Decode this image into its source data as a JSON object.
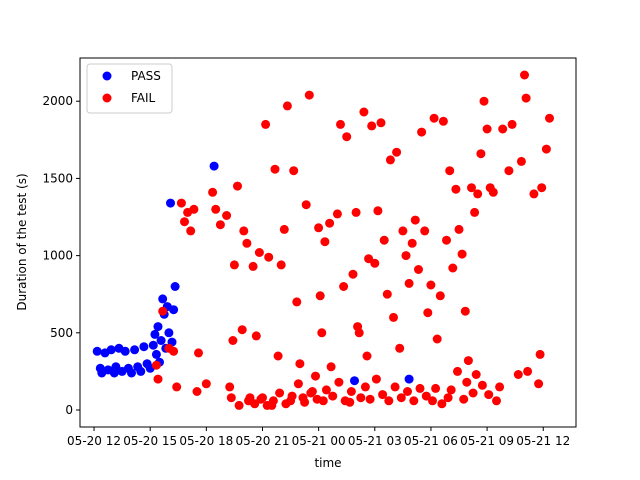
{
  "chart_data": {
    "type": "scatter",
    "title": "",
    "xlabel": "time",
    "ylabel": "Duration of the test (s)",
    "x_is_time": true,
    "xlim": [
      "2024-05-20T11:15:00",
      "2024-05-21T13:45:00"
    ],
    "ylim": [
      -110,
      2280
    ],
    "grid": false,
    "legend_position": "upper left",
    "x_ticks": [
      {
        "t": "2024-05-20T12:00:00",
        "label": "05-20 12"
      },
      {
        "t": "2024-05-20T15:00:00",
        "label": "05-20 15"
      },
      {
        "t": "2024-05-20T18:00:00",
        "label": "05-20 18"
      },
      {
        "t": "2024-05-20T21:00:00",
        "label": "05-20 21"
      },
      {
        "t": "2024-05-21T00:00:00",
        "label": "05-21 00"
      },
      {
        "t": "2024-05-21T03:00:00",
        "label": "05-21 03"
      },
      {
        "t": "2024-05-21T06:00:00",
        "label": "05-21 06"
      },
      {
        "t": "2024-05-21T09:00:00",
        "label": "05-21 09"
      },
      {
        "t": "2024-05-21T12:00:00",
        "label": "05-21 12"
      }
    ],
    "y_ticks": [
      0,
      500,
      1000,
      1500,
      2000
    ],
    "series": [
      {
        "name": "PASS",
        "color": "#0000ff",
        "points": [
          [
            "2024-05-20T12:10:00",
            380
          ],
          [
            "2024-05-20T12:20:00",
            270
          ],
          [
            "2024-05-20T12:25:00",
            240
          ],
          [
            "2024-05-20T12:35:00",
            370
          ],
          [
            "2024-05-20T12:45:00",
            260
          ],
          [
            "2024-05-20T12:55:00",
            390
          ],
          [
            "2024-05-20T13:05:00",
            240
          ],
          [
            "2024-05-20T13:10:00",
            280
          ],
          [
            "2024-05-20T13:20:00",
            400
          ],
          [
            "2024-05-20T13:30:00",
            250
          ],
          [
            "2024-05-20T13:40:00",
            380
          ],
          [
            "2024-05-20T13:50:00",
            270
          ],
          [
            "2024-05-20T14:00:00",
            240
          ],
          [
            "2024-05-20T14:10:00",
            390
          ],
          [
            "2024-05-20T14:20:00",
            280
          ],
          [
            "2024-05-20T14:30:00",
            250
          ],
          [
            "2024-05-20T14:40:00",
            410
          ],
          [
            "2024-05-20T14:50:00",
            300
          ],
          [
            "2024-05-20T15:00:00",
            270
          ],
          [
            "2024-05-20T15:10:00",
            420
          ],
          [
            "2024-05-20T15:15:00",
            490
          ],
          [
            "2024-05-20T15:20:00",
            360
          ],
          [
            "2024-05-20T15:25:00",
            540
          ],
          [
            "2024-05-20T15:30:00",
            310
          ],
          [
            "2024-05-20T15:35:00",
            450
          ],
          [
            "2024-05-20T15:40:00",
            720
          ],
          [
            "2024-05-20T15:45:00",
            620
          ],
          [
            "2024-05-20T15:50:00",
            400
          ],
          [
            "2024-05-20T15:55:00",
            670
          ],
          [
            "2024-05-20T16:00:00",
            500
          ],
          [
            "2024-05-20T16:05:00",
            1340
          ],
          [
            "2024-05-20T16:10:00",
            440
          ],
          [
            "2024-05-20T16:15:00",
            650
          ],
          [
            "2024-05-20T16:20:00",
            800
          ],
          [
            "2024-05-20T18:25:00",
            1580
          ],
          [
            "2024-05-21T01:55:00",
            190
          ],
          [
            "2024-05-21T04:50:00",
            200
          ]
        ]
      },
      {
        "name": "FAIL",
        "color": "#ff0000",
        "points": [
          [
            "2024-05-20T15:20:00",
            290
          ],
          [
            "2024-05-20T15:25:00",
            200
          ],
          [
            "2024-05-20T15:40:00",
            640
          ],
          [
            "2024-05-20T16:00:00",
            400
          ],
          [
            "2024-05-20T16:15:00",
            380
          ],
          [
            "2024-05-20T16:25:00",
            150
          ],
          [
            "2024-05-20T16:40:00",
            1340
          ],
          [
            "2024-05-20T16:50:00",
            1220
          ],
          [
            "2024-05-20T17:00:00",
            1280
          ],
          [
            "2024-05-20T17:10:00",
            1160
          ],
          [
            "2024-05-20T17:20:00",
            1300
          ],
          [
            "2024-05-20T17:30:00",
            120
          ],
          [
            "2024-05-20T17:35:00",
            370
          ],
          [
            "2024-05-20T18:00:00",
            170
          ],
          [
            "2024-05-20T18:20:00",
            1410
          ],
          [
            "2024-05-20T18:30:00",
            1300
          ],
          [
            "2024-05-20T18:45:00",
            1200
          ],
          [
            "2024-05-20T19:05:00",
            1260
          ],
          [
            "2024-05-20T19:15:00",
            150
          ],
          [
            "2024-05-20T19:20:00",
            80
          ],
          [
            "2024-05-20T19:25:00",
            450
          ],
          [
            "2024-05-20T19:30:00",
            940
          ],
          [
            "2024-05-20T19:40:00",
            1450
          ],
          [
            "2024-05-20T19:45:00",
            30
          ],
          [
            "2024-05-20T19:55:00",
            520
          ],
          [
            "2024-05-20T20:00:00",
            1160
          ],
          [
            "2024-05-20T20:10:00",
            1080
          ],
          [
            "2024-05-20T20:20:00",
            80
          ],
          [
            "2024-05-20T20:30:00",
            930
          ],
          [
            "2024-05-20T20:40:00",
            480
          ],
          [
            "2024-05-20T20:50:00",
            1020
          ],
          [
            "2024-05-20T21:00:00",
            80
          ],
          [
            "2024-05-20T21:10:00",
            1850
          ],
          [
            "2024-05-20T21:20:00",
            990
          ],
          [
            "2024-05-20T21:30:00",
            30
          ],
          [
            "2024-05-20T21:40:00",
            1560
          ],
          [
            "2024-05-20T21:50:00",
            350
          ],
          [
            "2024-05-20T22:00:00",
            940
          ],
          [
            "2024-05-20T22:10:00",
            1170
          ],
          [
            "2024-05-20T22:20:00",
            1970
          ],
          [
            "2024-05-20T22:30:00",
            60
          ],
          [
            "2024-05-20T22:40:00",
            1550
          ],
          [
            "2024-05-20T22:50:00",
            700
          ],
          [
            "2024-05-20T23:00:00",
            300
          ],
          [
            "2024-05-20T23:10:00",
            80
          ],
          [
            "2024-05-20T23:20:00",
            1330
          ],
          [
            "2024-05-20T23:30:00",
            2040
          ],
          [
            "2024-05-20T23:40:00",
            120
          ],
          [
            "2024-05-20T23:50:00",
            220
          ],
          [
            "2024-05-21T00:00:00",
            1180
          ],
          [
            "2024-05-21T00:05:00",
            740
          ],
          [
            "2024-05-21T00:10:00",
            500
          ],
          [
            "2024-05-21T00:15:00",
            60
          ],
          [
            "2024-05-21T00:20:00",
            1090
          ],
          [
            "2024-05-21T00:35:00",
            1210
          ],
          [
            "2024-05-21T00:40:00",
            280
          ],
          [
            "2024-05-21T01:00:00",
            1270
          ],
          [
            "2024-05-21T01:10:00",
            1850
          ],
          [
            "2024-05-21T01:20:00",
            800
          ],
          [
            "2024-05-21T01:30:00",
            1770
          ],
          [
            "2024-05-21T01:40:00",
            50
          ],
          [
            "2024-05-21T01:50:00",
            880
          ],
          [
            "2024-05-21T02:00:00",
            1280
          ],
          [
            "2024-05-21T02:05:00",
            540
          ],
          [
            "2024-05-21T02:10:00",
            500
          ],
          [
            "2024-05-21T02:25:00",
            1930
          ],
          [
            "2024-05-21T02:35:00",
            350
          ],
          [
            "2024-05-21T02:40:00",
            980
          ],
          [
            "2024-05-21T02:50:00",
            1840
          ],
          [
            "2024-05-21T03:00:00",
            950
          ],
          [
            "2024-05-21T03:10:00",
            1290
          ],
          [
            "2024-05-21T03:20:00",
            1860
          ],
          [
            "2024-05-21T03:30:00",
            1100
          ],
          [
            "2024-05-21T03:40:00",
            750
          ],
          [
            "2024-05-21T03:50:00",
            1620
          ],
          [
            "2024-05-21T04:00:00",
            600
          ],
          [
            "2024-05-21T04:10:00",
            1670
          ],
          [
            "2024-05-21T04:20:00",
            400
          ],
          [
            "2024-05-21T04:30:00",
            1160
          ],
          [
            "2024-05-21T04:40:00",
            1000
          ],
          [
            "2024-05-21T04:50:00",
            820
          ],
          [
            "2024-05-21T05:00:00",
            1080
          ],
          [
            "2024-05-21T05:10:00",
            1230
          ],
          [
            "2024-05-21T05:20:00",
            910
          ],
          [
            "2024-05-21T05:30:00",
            1800
          ],
          [
            "2024-05-21T05:40:00",
            1160
          ],
          [
            "2024-05-21T05:50:00",
            630
          ],
          [
            "2024-05-21T06:00:00",
            810
          ],
          [
            "2024-05-21T06:10:00",
            1890
          ],
          [
            "2024-05-21T06:20:00",
            460
          ],
          [
            "2024-05-21T06:30:00",
            740
          ],
          [
            "2024-05-21T06:40:00",
            1870
          ],
          [
            "2024-05-21T06:50:00",
            1100
          ],
          [
            "2024-05-21T07:00:00",
            1550
          ],
          [
            "2024-05-21T07:10:00",
            920
          ],
          [
            "2024-05-21T07:20:00",
            1430
          ],
          [
            "2024-05-21T07:30:00",
            1170
          ],
          [
            "2024-05-21T07:40:00",
            1010
          ],
          [
            "2024-05-21T07:50:00",
            640
          ],
          [
            "2024-05-21T08:00:00",
            320
          ],
          [
            "2024-05-21T08:10:00",
            1440
          ],
          [
            "2024-05-21T08:20:00",
            1280
          ],
          [
            "2024-05-21T08:30:00",
            1400
          ],
          [
            "2024-05-21T08:40:00",
            1660
          ],
          [
            "2024-05-21T08:50:00",
            2000
          ],
          [
            "2024-05-21T09:00:00",
            1820
          ],
          [
            "2024-05-21T09:10:00",
            1440
          ],
          [
            "2024-05-21T09:20:00",
            1410
          ],
          [
            "2024-05-21T09:50:00",
            1820
          ],
          [
            "2024-05-21T10:10:00",
            1550
          ],
          [
            "2024-05-21T10:20:00",
            1850
          ],
          [
            "2024-05-21T10:50:00",
            1610
          ],
          [
            "2024-05-21T11:00:00",
            2170
          ],
          [
            "2024-05-21T11:05:00",
            2020
          ],
          [
            "2024-05-21T11:30:00",
            1400
          ],
          [
            "2024-05-21T11:55:00",
            1440
          ],
          [
            "2024-05-21T12:10:00",
            1690
          ],
          [
            "2024-05-21T12:20:00",
            1890
          ],
          [
            "2024-05-21T11:50:00",
            360
          ],
          [
            "2024-05-21T11:45:00",
            170
          ],
          [
            "2024-05-21T11:10:00",
            250
          ],
          [
            "2024-05-21T10:40:00",
            230
          ],
          [
            "2024-05-21T09:40:00",
            150
          ],
          [
            "2024-05-21T09:30:00",
            60
          ],
          [
            "2024-05-21T09:05:00",
            100
          ],
          [
            "2024-05-21T08:45:00",
            160
          ],
          [
            "2024-05-21T08:25:00",
            230
          ],
          [
            "2024-05-21T08:15:00",
            110
          ],
          [
            "2024-05-21T07:55:00",
            180
          ],
          [
            "2024-05-21T07:45:00",
            70
          ],
          [
            "2024-05-21T07:25:00",
            250
          ],
          [
            "2024-05-21T07:05:00",
            130
          ],
          [
            "2024-05-21T06:55:00",
            80
          ],
          [
            "2024-05-21T06:35:00",
            40
          ],
          [
            "2024-05-21T06:15:00",
            140
          ],
          [
            "2024-05-21T06:05:00",
            60
          ],
          [
            "2024-05-21T05:45:00",
            90
          ],
          [
            "2024-05-21T05:25:00",
            140
          ],
          [
            "2024-05-21T05:05:00",
            60
          ],
          [
            "2024-05-21T04:45:00",
            120
          ],
          [
            "2024-05-21T04:25:00",
            80
          ],
          [
            "2024-05-21T04:05:00",
            150
          ],
          [
            "2024-05-21T03:45:00",
            60
          ],
          [
            "2024-05-21T03:25:00",
            100
          ],
          [
            "2024-05-21T03:05:00",
            200
          ],
          [
            "2024-05-21T02:45:00",
            70
          ],
          [
            "2024-05-21T02:30:00",
            150
          ],
          [
            "2024-05-21T02:15:00",
            80
          ],
          [
            "2024-05-21T01:45:00",
            120
          ],
          [
            "2024-05-21T01:25:00",
            60
          ],
          [
            "2024-05-21T01:05:00",
            180
          ],
          [
            "2024-05-21T00:45:00",
            90
          ],
          [
            "2024-05-21T00:25:00",
            130
          ],
          [
            "2024-05-20T23:55:00",
            70
          ],
          [
            "2024-05-20T23:35:00",
            110
          ],
          [
            "2024-05-20T23:15:00",
            50
          ],
          [
            "2024-05-20T22:55:00",
            170
          ],
          [
            "2024-05-20T22:35:00",
            90
          ],
          [
            "2024-05-20T22:15:00",
            40
          ],
          [
            "2024-05-20T21:55:00",
            110
          ],
          [
            "2024-05-20T21:35:00",
            60
          ],
          [
            "2024-05-20T21:15:00",
            30
          ],
          [
            "2024-05-20T20:55:00",
            70
          ],
          [
            "2024-05-20T20:35:00",
            40
          ],
          [
            "2024-05-20T20:15:00",
            60
          ]
        ]
      }
    ]
  }
}
